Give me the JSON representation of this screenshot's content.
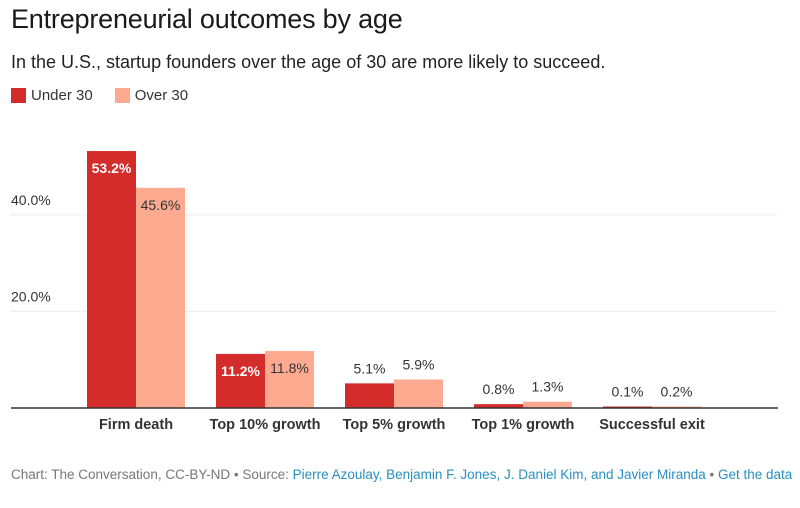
{
  "header": {
    "title": "Entrepreneurial outcomes by age",
    "subtitle": "In the U.S., startup founders over the age of 30 are more likely to succeed."
  },
  "legend": [
    {
      "label": "Under 30",
      "color": "#d42b2b"
    },
    {
      "label": "Over 30",
      "color": "#fdaa91"
    }
  ],
  "footer": {
    "credit": "Chart: The Conversation, CC-BY-ND • Source: ",
    "source_link": "Pierre Azoulay, Benjamin F. Jones, J. Daniel Kim, and Javier Miranda",
    "separator": " • ",
    "data_link": "Get the data"
  },
  "chart_data": {
    "type": "bar",
    "title": "Entrepreneurial outcomes by age",
    "subtitle": "In the U.S., startup founders over the age of 30 are more likely to succeed.",
    "categories": [
      "Firm death",
      "Top 10% growth",
      "Top 5% growth",
      "Top 1% growth",
      "Successful exit"
    ],
    "series": [
      {
        "name": "Under 30",
        "color": "#d42b2b",
        "values": [
          53.2,
          11.2,
          5.1,
          0.8,
          0.1
        ],
        "labels": [
          "53.2%",
          "11.2%",
          "5.1%",
          "0.8%",
          "0.1%"
        ]
      },
      {
        "name": "Over 30",
        "color": "#fdaa91",
        "values": [
          45.6,
          11.8,
          5.9,
          1.3,
          0.2
        ],
        "labels": [
          "45.6%",
          "11.8%",
          "5.9%",
          "1.3%",
          "0.2%"
        ]
      }
    ],
    "yticks": [
      20,
      40
    ],
    "ytick_labels": [
      "20.0%",
      "40.0%"
    ],
    "ylim": [
      0,
      55
    ],
    "xlabel": "",
    "ylabel": "",
    "grid": true,
    "legend_position": "top-left"
  }
}
